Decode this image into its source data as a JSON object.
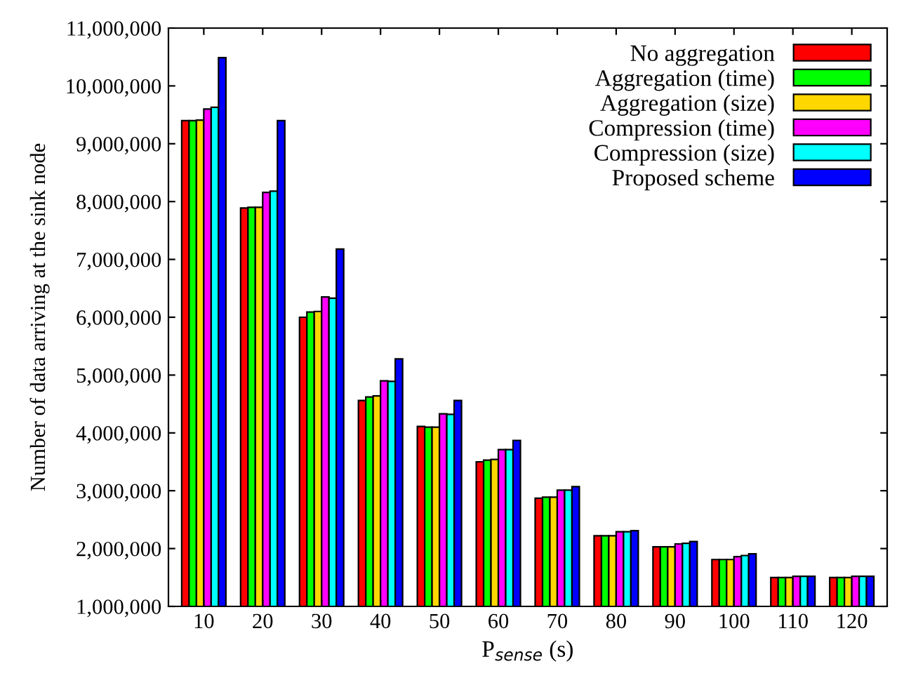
{
  "chart_data": {
    "type": "bar",
    "xlabel": "P$_{sense}$ (s)",
    "ylabel": "Number of data arriving at the sink node",
    "categories": [
      "10",
      "20",
      "30",
      "40",
      "50",
      "60",
      "70",
      "80",
      "90",
      "100",
      "110",
      "120"
    ],
    "series": [
      {
        "name": "No aggregation",
        "color": "#ff0000",
        "values": [
          9400000,
          7890000,
          6000000,
          4560000,
          4110000,
          3500000,
          2870000,
          2220000,
          2030000,
          1810000,
          1500000,
          1500000
        ]
      },
      {
        "name": "Aggregation (time)",
        "color": "#00ff00",
        "values": [
          9400000,
          7900000,
          6090000,
          4620000,
          4100000,
          3530000,
          2890000,
          2220000,
          2030000,
          1810000,
          1500000,
          1500000
        ]
      },
      {
        "name": "Aggregation (size)",
        "color": "#ffd700",
        "values": [
          9410000,
          7900000,
          6100000,
          4640000,
          4100000,
          3540000,
          2890000,
          2220000,
          2030000,
          1810000,
          1500000,
          1500000
        ]
      },
      {
        "name": "Compression (time)",
        "color": "#ff00ff",
        "values": [
          9600000,
          8160000,
          6350000,
          4900000,
          4330000,
          3710000,
          3010000,
          2290000,
          2080000,
          1860000,
          1520000,
          1520000
        ]
      },
      {
        "name": "Compression (size)",
        "color": "#00ffff",
        "values": [
          9630000,
          8180000,
          6330000,
          4890000,
          4320000,
          3710000,
          3010000,
          2290000,
          2090000,
          1880000,
          1520000,
          1520000
        ]
      },
      {
        "name": "Proposed scheme",
        "color": "#0000ff",
        "values": [
          10490000,
          9400000,
          7180000,
          5280000,
          4560000,
          3870000,
          3070000,
          2310000,
          2120000,
          1910000,
          1520000,
          1520000
        ]
      }
    ],
    "ylim": [
      1000000,
      11000000
    ],
    "yticks": [
      {
        "value": 1000000,
        "label": "1,000,000"
      },
      {
        "value": 2000000,
        "label": "2,000,000"
      },
      {
        "value": 3000000,
        "label": "3,000,000"
      },
      {
        "value": 4000000,
        "label": "4,000,000"
      },
      {
        "value": 5000000,
        "label": "5,000,000"
      },
      {
        "value": 6000000,
        "label": "6,000,000"
      },
      {
        "value": 7000000,
        "label": "7,000,000"
      },
      {
        "value": 8000000,
        "label": "8,000,000"
      },
      {
        "value": 9000000,
        "label": "9,000,000"
      },
      {
        "value": 10000000,
        "label": "10,000,000"
      },
      {
        "value": 11000000,
        "label": "11,000,000"
      }
    ],
    "legend": "top right",
    "grid": false
  }
}
